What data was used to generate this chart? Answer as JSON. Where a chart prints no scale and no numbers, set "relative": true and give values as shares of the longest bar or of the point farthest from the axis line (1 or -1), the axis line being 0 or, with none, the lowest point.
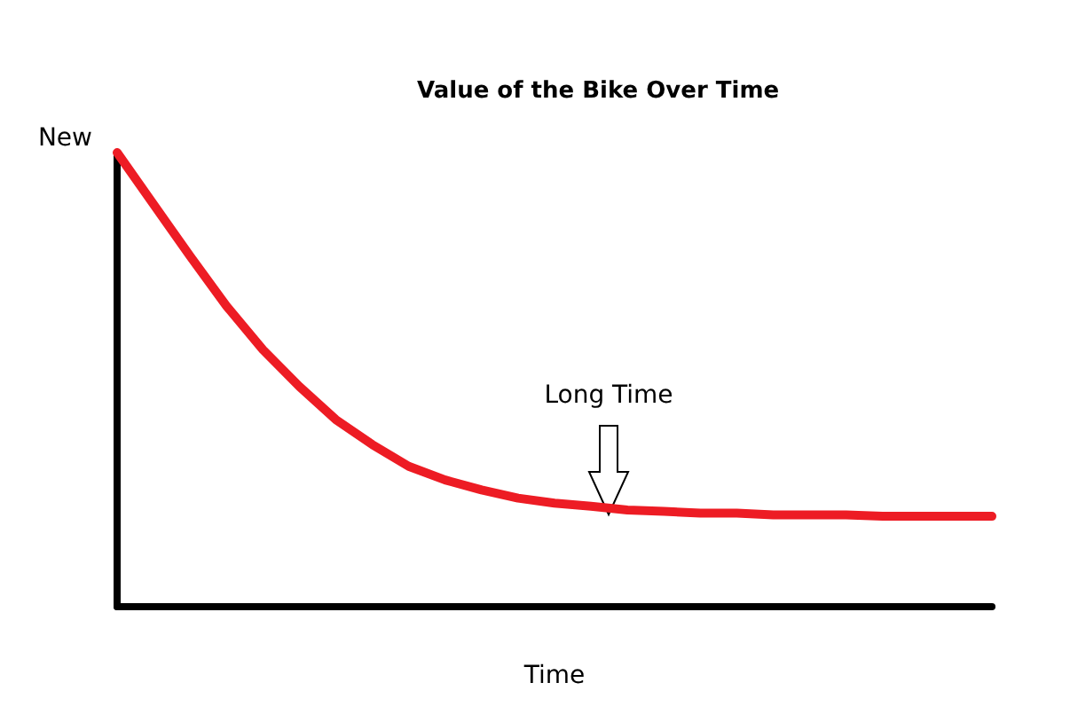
{
  "chart_data": {
    "type": "line",
    "title": "Value of the Bike Over Time",
    "xlabel": "Time",
    "relative": true,
    "grid": false,
    "marker": "none",
    "line_style": "solid",
    "categories": [
      null,
      null,
      null,
      null,
      null,
      null,
      null,
      null,
      null,
      null,
      null,
      null,
      null,
      null,
      null,
      null,
      null,
      null,
      null,
      null,
      null,
      null,
      null,
      null,
      null
    ],
    "series": [
      {
        "color": "#ed1c24",
        "values": [
          1.0,
          0.886,
          0.772,
          0.662,
          0.566,
          0.485,
          0.412,
          0.357,
          0.309,
          0.279,
          0.257,
          0.239,
          0.228,
          0.221,
          0.213,
          0.21,
          0.206,
          0.206,
          0.202,
          0.202,
          0.202,
          0.199,
          0.199,
          0.199,
          0.199
        ]
      }
    ],
    "annotations": [
      "New",
      "Long Time"
    ]
  }
}
